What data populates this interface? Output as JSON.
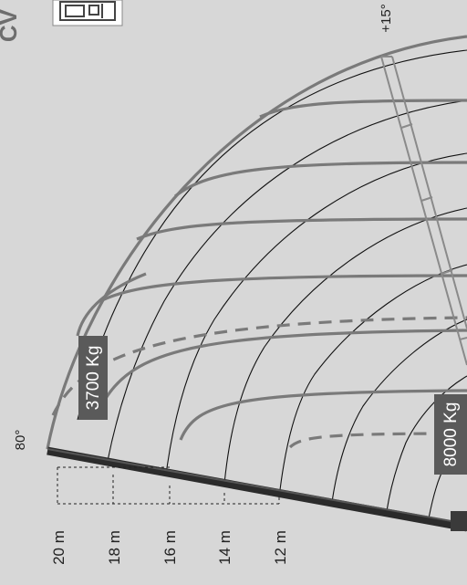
{
  "header": {
    "brand_fragment": "CV"
  },
  "angles": {
    "boom_angle": "80°",
    "jib_angle": "+15°"
  },
  "heights": [
    {
      "label": "20 m"
    },
    {
      "label": "18 m"
    },
    {
      "label": "16 m"
    },
    {
      "label": "14 m"
    },
    {
      "label": "12 m"
    }
  ],
  "loads": [
    {
      "label": "3700 Kg"
    },
    {
      "label": "8000 Kg"
    }
  ],
  "colors": {
    "background": "#d7d7d7",
    "curve_gray": "#7a7a7a",
    "grid_black": "#111111",
    "boom_dark": "#2b2b2b",
    "label_box": "#5a5a5a",
    "label_text": "#ffffff"
  }
}
